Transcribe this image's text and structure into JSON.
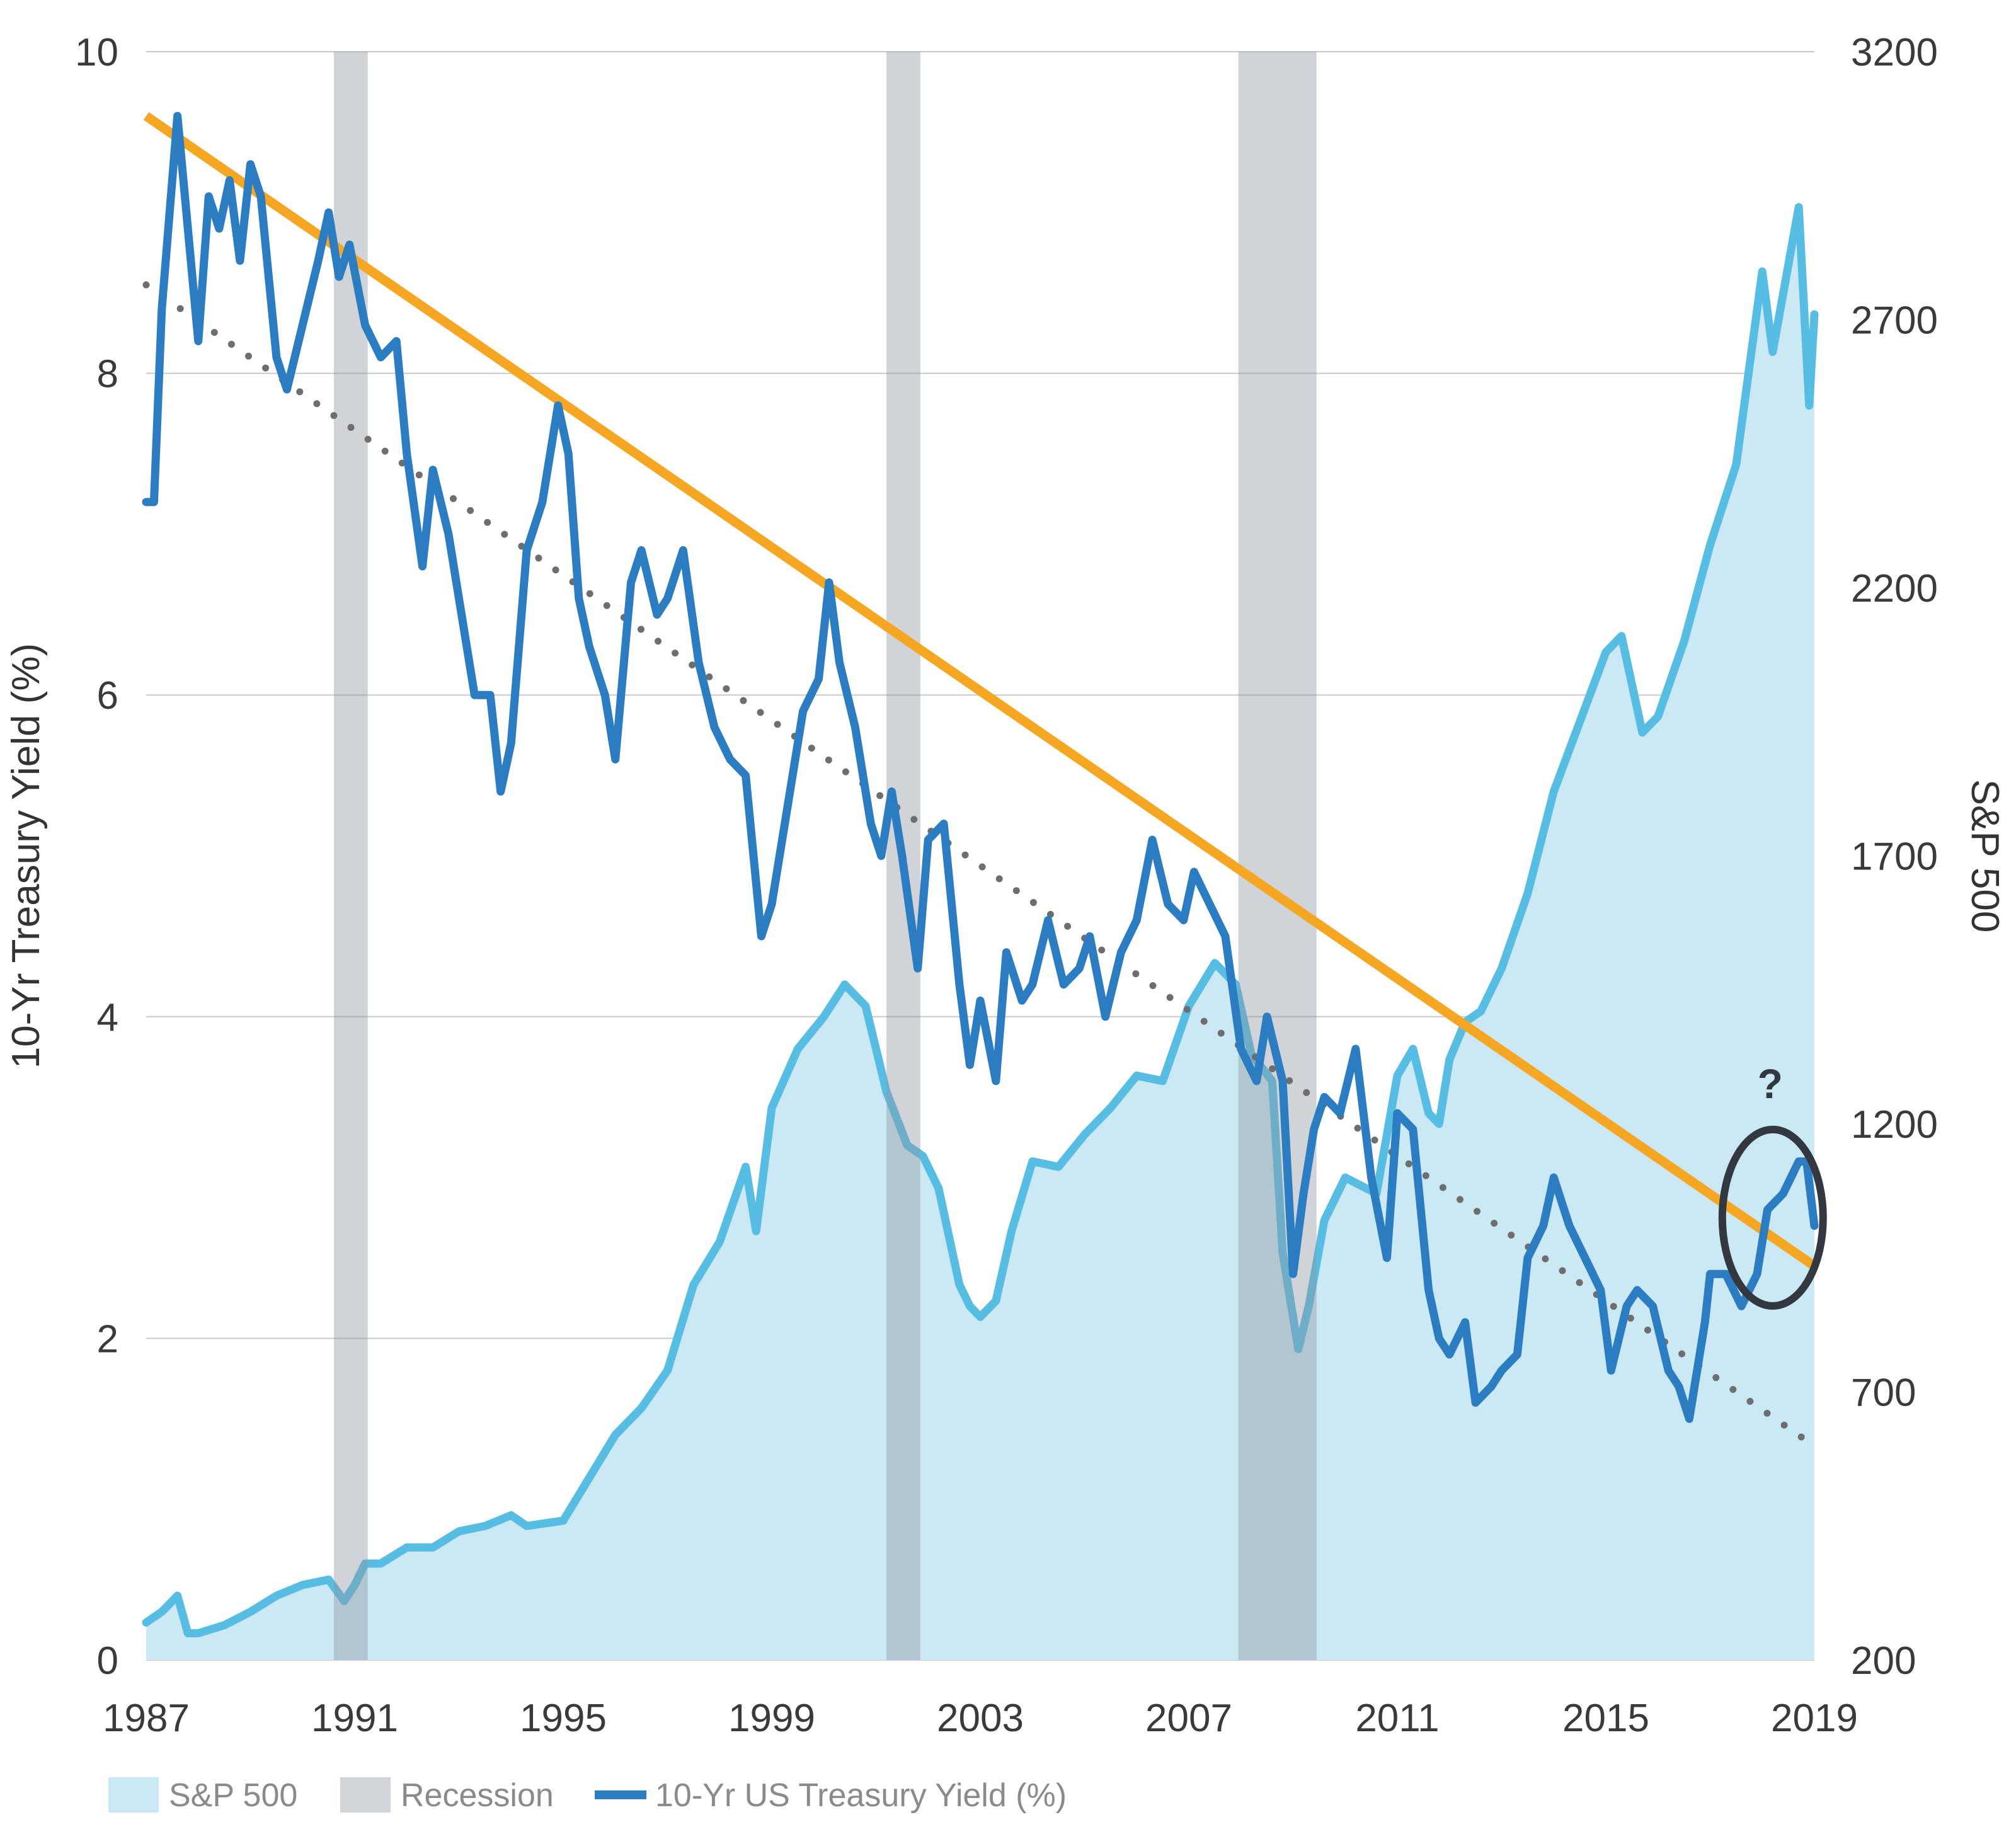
{
  "chart_data": {
    "type": "line",
    "title": "",
    "x_ticks": [
      "1987",
      "1991",
      "1995",
      "1999",
      "2003",
      "2007",
      "2011",
      "2015",
      "2019"
    ],
    "xlim": [
      1987,
      2019
    ],
    "y_left": {
      "label": "10-Yr Treasury Yield (%)",
      "ticks": [
        "0",
        "2",
        "4",
        "6",
        "8",
        "10"
      ],
      "range": [
        0,
        10
      ]
    },
    "y_right": {
      "label": "S&P 500",
      "ticks": [
        "200",
        "700",
        "1200",
        "1700",
        "2200",
        "2700",
        "3200"
      ],
      "range": [
        200,
        3200
      ]
    },
    "grid": "horizontal",
    "legend_position": "bottom-left",
    "legend": [
      {
        "label": "S&P 500",
        "color": "#cbe9f5",
        "marker": "box"
      },
      {
        "label": "Recession",
        "color": "#d1d4d9",
        "marker": "box"
      },
      {
        "label": "10-Yr US Treasury Yield (%)",
        "color": "#2b7cc0",
        "marker": "line"
      }
    ],
    "annotation": {
      "text": "?",
      "x": 2018.2,
      "y": 2.75
    },
    "recessions": [
      [
        1990.6,
        1991.25
      ],
      [
        2001.2,
        2001.85
      ],
      [
        2007.95,
        2009.45
      ]
    ],
    "trend_lines": [
      {
        "style": "solid",
        "color": "#f5a623",
        "points": [
          [
            1987.0,
            9.6
          ],
          [
            2019.0,
            2.45
          ]
        ]
      },
      {
        "style": "dotted",
        "color": "#6e6e6e",
        "points": [
          [
            1987.0,
            8.55
          ],
          [
            2019.0,
            1.33
          ]
        ]
      }
    ],
    "series": [
      {
        "name": "S&P 500",
        "axis": "right",
        "type": "area",
        "color": "#57bde3",
        "fill": "#cbe9f5",
        "points": [
          [
            1987.0,
            270
          ],
          [
            1987.3,
            290
          ],
          [
            1987.6,
            320
          ],
          [
            1987.8,
            250
          ],
          [
            1988.0,
            250
          ],
          [
            1988.5,
            265
          ],
          [
            1989.0,
            290
          ],
          [
            1989.5,
            320
          ],
          [
            1990.0,
            340
          ],
          [
            1990.5,
            350
          ],
          [
            1990.8,
            310
          ],
          [
            1991.0,
            340
          ],
          [
            1991.2,
            380
          ],
          [
            1991.5,
            380
          ],
          [
            1992.0,
            410
          ],
          [
            1992.5,
            410
          ],
          [
            1993.0,
            440
          ],
          [
            1993.5,
            450
          ],
          [
            1994.0,
            470
          ],
          [
            1994.3,
            450
          ],
          [
            1995.0,
            460
          ],
          [
            1995.5,
            540
          ],
          [
            1996.0,
            620
          ],
          [
            1996.5,
            670
          ],
          [
            1997.0,
            740
          ],
          [
            1997.5,
            900
          ],
          [
            1998.0,
            980
          ],
          [
            1998.5,
            1120
          ],
          [
            1998.7,
            1000
          ],
          [
            1999.0,
            1230
          ],
          [
            1999.5,
            1340
          ],
          [
            2000.0,
            1400
          ],
          [
            2000.4,
            1460
          ],
          [
            2000.8,
            1420
          ],
          [
            2001.2,
            1260
          ],
          [
            2001.6,
            1160
          ],
          [
            2001.9,
            1140
          ],
          [
            2002.2,
            1080
          ],
          [
            2002.6,
            900
          ],
          [
            2002.8,
            860
          ],
          [
            2003.0,
            840
          ],
          [
            2003.3,
            870
          ],
          [
            2003.6,
            1000
          ],
          [
            2004.0,
            1130
          ],
          [
            2004.5,
            1120
          ],
          [
            2005.0,
            1180
          ],
          [
            2005.5,
            1230
          ],
          [
            2006.0,
            1290
          ],
          [
            2006.5,
            1280
          ],
          [
            2007.0,
            1420
          ],
          [
            2007.5,
            1500
          ],
          [
            2007.9,
            1460
          ],
          [
            2008.2,
            1330
          ],
          [
            2008.6,
            1280
          ],
          [
            2008.8,
            960
          ],
          [
            2009.1,
            780
          ],
          [
            2009.3,
            860
          ],
          [
            2009.6,
            1020
          ],
          [
            2010.0,
            1100
          ],
          [
            2010.4,
            1080
          ],
          [
            2010.6,
            1070
          ],
          [
            2011.0,
            1290
          ],
          [
            2011.3,
            1340
          ],
          [
            2011.6,
            1220
          ],
          [
            2011.8,
            1200
          ],
          [
            2012.0,
            1320
          ],
          [
            2012.3,
            1390
          ],
          [
            2012.6,
            1410
          ],
          [
            2013.0,
            1490
          ],
          [
            2013.5,
            1630
          ],
          [
            2014.0,
            1820
          ],
          [
            2014.5,
            1950
          ],
          [
            2015.0,
            2080
          ],
          [
            2015.3,
            2110
          ],
          [
            2015.7,
            1930
          ],
          [
            2016.0,
            1960
          ],
          [
            2016.5,
            2100
          ],
          [
            2017.0,
            2280
          ],
          [
            2017.5,
            2430
          ],
          [
            2018.0,
            2790
          ],
          [
            2018.2,
            2640
          ],
          [
            2018.7,
            2910
          ],
          [
            2018.9,
            2540
          ],
          [
            2019.0,
            2710
          ]
        ]
      },
      {
        "name": "10-Yr US Treasury Yield (%)",
        "axis": "left",
        "type": "line",
        "color": "#2b7cc0",
        "points": [
          [
            1987.0,
            7.2
          ],
          [
            1987.15,
            7.2
          ],
          [
            1987.3,
            8.4
          ],
          [
            1987.6,
            9.6
          ],
          [
            1987.8,
            8.9
          ],
          [
            1988.0,
            8.2
          ],
          [
            1988.2,
            9.1
          ],
          [
            1988.4,
            8.9
          ],
          [
            1988.6,
            9.2
          ],
          [
            1988.8,
            8.7
          ],
          [
            1989.0,
            9.3
          ],
          [
            1989.2,
            9.1
          ],
          [
            1989.5,
            8.1
          ],
          [
            1989.7,
            7.9
          ],
          [
            1990.0,
            8.3
          ],
          [
            1990.3,
            8.7
          ],
          [
            1990.5,
            9.0
          ],
          [
            1990.7,
            8.6
          ],
          [
            1990.9,
            8.8
          ],
          [
            1991.2,
            8.3
          ],
          [
            1991.5,
            8.1
          ],
          [
            1991.8,
            8.2
          ],
          [
            1992.0,
            7.5
          ],
          [
            1992.3,
            6.8
          ],
          [
            1992.5,
            7.4
          ],
          [
            1992.8,
            7.0
          ],
          [
            1993.0,
            6.6
          ],
          [
            1993.3,
            6.0
          ],
          [
            1993.6,
            6.0
          ],
          [
            1993.8,
            5.4
          ],
          [
            1994.0,
            5.7
          ],
          [
            1994.3,
            6.9
          ],
          [
            1994.6,
            7.2
          ],
          [
            1994.9,
            7.8
          ],
          [
            1995.1,
            7.5
          ],
          [
            1995.3,
            6.6
          ],
          [
            1995.5,
            6.3
          ],
          [
            1995.8,
            6.0
          ],
          [
            1996.0,
            5.6
          ],
          [
            1996.3,
            6.7
          ],
          [
            1996.5,
            6.9
          ],
          [
            1996.8,
            6.5
          ],
          [
            1997.0,
            6.6
          ],
          [
            1997.3,
            6.9
          ],
          [
            1997.6,
            6.2
          ],
          [
            1997.9,
            5.8
          ],
          [
            1998.2,
            5.6
          ],
          [
            1998.5,
            5.5
          ],
          [
            1998.8,
            4.5
          ],
          [
            1999.0,
            4.7
          ],
          [
            1999.3,
            5.3
          ],
          [
            1999.6,
            5.9
          ],
          [
            1999.9,
            6.1
          ],
          [
            2000.1,
            6.7
          ],
          [
            2000.3,
            6.2
          ],
          [
            2000.6,
            5.8
          ],
          [
            2000.9,
            5.2
          ],
          [
            2001.1,
            5.0
          ],
          [
            2001.3,
            5.4
          ],
          [
            2001.5,
            5.0
          ],
          [
            2001.8,
            4.3
          ],
          [
            2002.0,
            5.1
          ],
          [
            2002.3,
            5.2
          ],
          [
            2002.6,
            4.2
          ],
          [
            2002.8,
            3.7
          ],
          [
            2003.0,
            4.1
          ],
          [
            2003.3,
            3.6
          ],
          [
            2003.5,
            4.4
          ],
          [
            2003.8,
            4.1
          ],
          [
            2004.0,
            4.2
          ],
          [
            2004.3,
            4.6
          ],
          [
            2004.6,
            4.2
          ],
          [
            2004.9,
            4.3
          ],
          [
            2005.1,
            4.5
          ],
          [
            2005.4,
            4.0
          ],
          [
            2005.7,
            4.4
          ],
          [
            2006.0,
            4.6
          ],
          [
            2006.3,
            5.1
          ],
          [
            2006.6,
            4.7
          ],
          [
            2006.9,
            4.6
          ],
          [
            2007.1,
            4.9
          ],
          [
            2007.4,
            4.7
          ],
          [
            2007.7,
            4.5
          ],
          [
            2008.0,
            3.8
          ],
          [
            2008.3,
            3.6
          ],
          [
            2008.5,
            4.0
          ],
          [
            2008.8,
            3.6
          ],
          [
            2009.0,
            2.4
          ],
          [
            2009.2,
            2.9
          ],
          [
            2009.4,
            3.3
          ],
          [
            2009.6,
            3.5
          ],
          [
            2009.9,
            3.4
          ],
          [
            2010.2,
            3.8
          ],
          [
            2010.5,
            3.0
          ],
          [
            2010.8,
            2.5
          ],
          [
            2011.0,
            3.4
          ],
          [
            2011.3,
            3.3
          ],
          [
            2011.6,
            2.3
          ],
          [
            2011.8,
            2.0
          ],
          [
            2012.0,
            1.9
          ],
          [
            2012.3,
            2.1
          ],
          [
            2012.5,
            1.6
          ],
          [
            2012.8,
            1.7
          ],
          [
            2013.0,
            1.8
          ],
          [
            2013.3,
            1.9
          ],
          [
            2013.5,
            2.5
          ],
          [
            2013.8,
            2.7
          ],
          [
            2014.0,
            3.0
          ],
          [
            2014.3,
            2.7
          ],
          [
            2014.6,
            2.5
          ],
          [
            2014.9,
            2.3
          ],
          [
            2015.1,
            1.8
          ],
          [
            2015.4,
            2.2
          ],
          [
            2015.6,
            2.3
          ],
          [
            2015.9,
            2.2
          ],
          [
            2016.2,
            1.8
          ],
          [
            2016.4,
            1.7
          ],
          [
            2016.6,
            1.5
          ],
          [
            2016.9,
            2.1
          ],
          [
            2017.0,
            2.4
          ],
          [
            2017.3,
            2.4
          ],
          [
            2017.6,
            2.2
          ],
          [
            2017.9,
            2.4
          ],
          [
            2018.1,
            2.8
          ],
          [
            2018.4,
            2.9
          ],
          [
            2018.7,
            3.1
          ],
          [
            2018.85,
            3.1
          ],
          [
            2019.0,
            2.7
          ]
        ]
      }
    ]
  }
}
